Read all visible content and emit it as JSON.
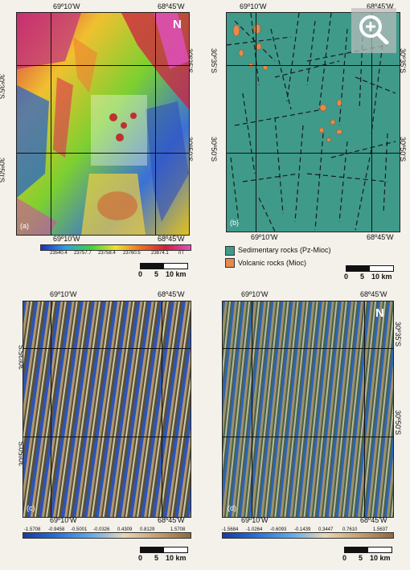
{
  "coords": {
    "lon_west": "69º10'W",
    "lon_east": "68º45'W",
    "lat_north": "30º35'S",
    "lat_south": "30º50'S"
  },
  "panels": {
    "a": {
      "letter": "(a)",
      "colorbar_ticks": [
        "23540.4",
        "23757.7",
        "23758.4",
        "23760.5",
        "23874.1"
      ],
      "unit": "nT"
    },
    "b": {
      "letter": "(b)"
    },
    "c": {
      "letter": "(c)",
      "colorbar_ticks": [
        "-1.5708",
        "-0.9458",
        "-0.5001",
        "-0.0326",
        "0.4309",
        "0.8129",
        "1.5708"
      ]
    },
    "d": {
      "letter": "(d)",
      "colorbar_ticks": [
        "-1.5684",
        "-1.0264",
        "-0.6093",
        "-0.1439",
        "0.3447",
        "0.7610",
        "1.5637"
      ]
    }
  },
  "legend": {
    "sedimentary": "Sedimentary rocks (Pz-Mioc)",
    "volcanic": "Volcanic rocks (Mioc)",
    "sed_color": "#3f9a8a",
    "volc_color": "#e58a4a"
  },
  "scale": {
    "zero": "0",
    "five": "5",
    "ten": "10 km"
  },
  "north": "N",
  "zoom_icon": "zoom-in-icon"
}
